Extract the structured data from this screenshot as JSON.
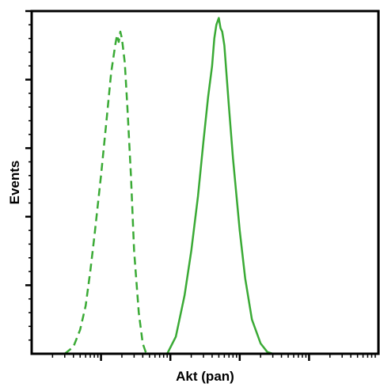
{
  "chart_data": {
    "type": "line",
    "title": "",
    "xlabel": "Akt (pan)",
    "ylabel": "Events",
    "x_scale": "log",
    "xlim": [
      1,
      100000
    ],
    "ylim": [
      0,
      100
    ],
    "grid": false,
    "legend": "none",
    "series": [
      {
        "style": "dashed",
        "color": "#3aaa35",
        "x": [
          3,
          4,
          5,
          6,
          7,
          8,
          10,
          12,
          14,
          16,
          17,
          18,
          19,
          20,
          22,
          24,
          27,
          30,
          35,
          40,
          45
        ],
        "y": [
          0,
          2,
          7,
          14,
          24,
          34,
          52,
          68,
          82,
          90,
          93,
          91,
          94,
          92,
          85,
          72,
          52,
          30,
          12,
          3,
          0
        ]
      },
      {
        "style": "solid",
        "color": "#3aaa35",
        "x": [
          90,
          120,
          160,
          200,
          250,
          300,
          350,
          400,
          430,
          460,
          500,
          530,
          560,
          600,
          700,
          800,
          1000,
          1200,
          1500,
          2000,
          2500,
          3000
        ],
        "y": [
          0,
          5,
          17,
          30,
          46,
          62,
          75,
          84,
          92,
          96,
          98,
          95,
          94,
          90,
          72,
          57,
          36,
          22,
          10,
          3,
          0.5,
          0
        ]
      }
    ]
  }
}
